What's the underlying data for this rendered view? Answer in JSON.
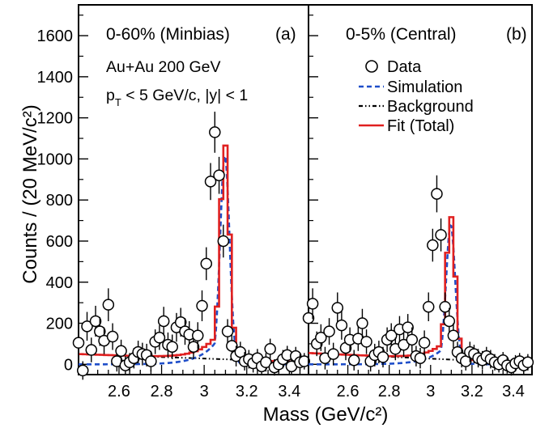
{
  "chart_data": {
    "type": "scatter",
    "ylabel": "Counts / (20 MeV/c²)",
    "xlabel": "Mass (GeV/c²)",
    "ylim": [
      -50,
      1750
    ],
    "y_ticks": [
      0,
      200,
      400,
      600,
      800,
      1000,
      1200,
      1400,
      1600
    ],
    "grid": false,
    "legend_position": "top-right of panel (b)",
    "legend": [
      {
        "label": "Data",
        "style": "open-circle",
        "color": "#000000"
      },
      {
        "label": "Simulation",
        "style": "dashed",
        "color": "#1f4ec9"
      },
      {
        "label": "Background",
        "style": "dash-dot-dot",
        "color": "#000000"
      },
      {
        "label": "Fit (Total)",
        "style": "solid",
        "color": "#e02020"
      }
    ],
    "panels": [
      {
        "id": "a",
        "label_centrality": "0-60% (Minbias)",
        "label_tag": "(a)",
        "annotation_line1": "Au+Au 200 GeV",
        "annotation_line2": "p_T < 5 GeV/c, |y| < 1",
        "xlim": [
          2.41,
          3.49
        ],
        "x_ticks": [
          "2.6",
          "2.8",
          "3",
          "3.2",
          "3.4"
        ],
        "x_tick_values": [
          2.6,
          2.8,
          3.0,
          3.2,
          3.4
        ],
        "data": [
          {
            "x": 2.41,
            "y": 105,
            "err": 60
          },
          {
            "x": 2.43,
            "y": -30,
            "err": 45
          },
          {
            "x": 2.45,
            "y": 185,
            "err": 70
          },
          {
            "x": 2.47,
            "y": 70,
            "err": 60
          },
          {
            "x": 2.49,
            "y": 210,
            "err": 75
          },
          {
            "x": 2.51,
            "y": 160,
            "err": 70
          },
          {
            "x": 2.53,
            "y": 115,
            "err": 65
          },
          {
            "x": 2.55,
            "y": 290,
            "err": 80
          },
          {
            "x": 2.57,
            "y": 135,
            "err": 65
          },
          {
            "x": 2.59,
            "y": 15,
            "err": 50
          },
          {
            "x": 2.61,
            "y": 65,
            "err": 55
          },
          {
            "x": 2.63,
            "y": -5,
            "err": 45
          },
          {
            "x": 2.65,
            "y": 10,
            "err": 45
          },
          {
            "x": 2.67,
            "y": 30,
            "err": 50
          },
          {
            "x": 2.69,
            "y": 60,
            "err": 55
          },
          {
            "x": 2.71,
            "y": 50,
            "err": 55
          },
          {
            "x": 2.73,
            "y": 45,
            "err": 55
          },
          {
            "x": 2.75,
            "y": 15,
            "err": 50
          },
          {
            "x": 2.77,
            "y": 110,
            "err": 60
          },
          {
            "x": 2.79,
            "y": 130,
            "err": 60
          },
          {
            "x": 2.81,
            "y": 210,
            "err": 70
          },
          {
            "x": 2.83,
            "y": 95,
            "err": 60
          },
          {
            "x": 2.85,
            "y": 85,
            "err": 60
          },
          {
            "x": 2.87,
            "y": 180,
            "err": 70
          },
          {
            "x": 2.89,
            "y": 205,
            "err": 70
          },
          {
            "x": 2.91,
            "y": 160,
            "err": 65
          },
          {
            "x": 2.93,
            "y": 145,
            "err": 65
          },
          {
            "x": 2.95,
            "y": 85,
            "err": 60
          },
          {
            "x": 2.97,
            "y": 140,
            "err": 65
          },
          {
            "x": 2.99,
            "y": 285,
            "err": 75
          },
          {
            "x": 3.01,
            "y": 490,
            "err": 80
          },
          {
            "x": 3.03,
            "y": 890,
            "err": 90
          },
          {
            "x": 3.05,
            "y": 1130,
            "err": 100
          },
          {
            "x": 3.07,
            "y": 920,
            "err": 90
          },
          {
            "x": 3.09,
            "y": 600,
            "err": 80
          },
          {
            "x": 3.11,
            "y": 160,
            "err": 60
          },
          {
            "x": 3.13,
            "y": 90,
            "err": 55
          },
          {
            "x": 3.15,
            "y": 40,
            "err": 50
          },
          {
            "x": 3.17,
            "y": 60,
            "err": 50
          },
          {
            "x": 3.19,
            "y": 15,
            "err": 45
          },
          {
            "x": 3.21,
            "y": 25,
            "err": 45
          },
          {
            "x": 3.23,
            "y": 5,
            "err": 45
          },
          {
            "x": 3.25,
            "y": 30,
            "err": 45
          },
          {
            "x": 3.27,
            "y": -10,
            "err": 40
          },
          {
            "x": 3.29,
            "y": 10,
            "err": 45
          },
          {
            "x": 3.31,
            "y": 75,
            "err": 50
          },
          {
            "x": 3.33,
            "y": -15,
            "err": 40
          },
          {
            "x": 3.35,
            "y": 0,
            "err": 40
          },
          {
            "x": 3.37,
            "y": 25,
            "err": 45
          },
          {
            "x": 3.39,
            "y": 45,
            "err": 45
          },
          {
            "x": 3.41,
            "y": -10,
            "err": 40
          },
          {
            "x": 3.43,
            "y": 40,
            "err": 45
          },
          {
            "x": 3.45,
            "y": 10,
            "err": 40
          },
          {
            "x": 3.47,
            "y": 15,
            "err": 40
          }
        ],
        "model": {
          "peak_mass": 3.097,
          "peak_height": 1050,
          "bg_at_low_edge": 50,
          "bg_at_high_edge": 10
        }
      },
      {
        "id": "b",
        "label_centrality": "0-5% (Central)",
        "label_tag": "(b)",
        "xlim": [
          2.41,
          3.49
        ],
        "x_ticks": [
          "2.6",
          "2.8",
          "3",
          "3.2",
          "3.4"
        ],
        "x_tick_values": [
          2.6,
          2.8,
          3.0,
          3.2,
          3.4
        ],
        "data": [
          {
            "x": 2.41,
            "y": 225,
            "err": 70
          },
          {
            "x": 2.43,
            "y": 295,
            "err": 75
          },
          {
            "x": 2.45,
            "y": 100,
            "err": 60
          },
          {
            "x": 2.47,
            "y": 130,
            "err": 65
          },
          {
            "x": 2.49,
            "y": 30,
            "err": 55
          },
          {
            "x": 2.51,
            "y": 160,
            "err": 65
          },
          {
            "x": 2.53,
            "y": 50,
            "err": 55
          },
          {
            "x": 2.55,
            "y": 275,
            "err": 75
          },
          {
            "x": 2.57,
            "y": 190,
            "err": 70
          },
          {
            "x": 2.59,
            "y": 80,
            "err": 60
          },
          {
            "x": 2.61,
            "y": 120,
            "err": 60
          },
          {
            "x": 2.63,
            "y": 20,
            "err": 50
          },
          {
            "x": 2.65,
            "y": 125,
            "err": 60
          },
          {
            "x": 2.67,
            "y": 200,
            "err": 70
          },
          {
            "x": 2.69,
            "y": 110,
            "err": 60
          },
          {
            "x": 2.71,
            "y": 15,
            "err": 50
          },
          {
            "x": 2.73,
            "y": 45,
            "err": 55
          },
          {
            "x": 2.75,
            "y": 60,
            "err": 55
          },
          {
            "x": 2.77,
            "y": 35,
            "err": 50
          },
          {
            "x": 2.79,
            "y": 120,
            "err": 60
          },
          {
            "x": 2.81,
            "y": 140,
            "err": 60
          },
          {
            "x": 2.83,
            "y": 75,
            "err": 55
          },
          {
            "x": 2.85,
            "y": 170,
            "err": 65
          },
          {
            "x": 2.87,
            "y": 95,
            "err": 60
          },
          {
            "x": 2.89,
            "y": 180,
            "err": 65
          },
          {
            "x": 2.91,
            "y": 120,
            "err": 60
          },
          {
            "x": 2.93,
            "y": 40,
            "err": 50
          },
          {
            "x": 2.95,
            "y": 30,
            "err": 50
          },
          {
            "x": 2.97,
            "y": 105,
            "err": 60
          },
          {
            "x": 2.99,
            "y": 280,
            "err": 70
          },
          {
            "x": 3.01,
            "y": 580,
            "err": 80
          },
          {
            "x": 3.03,
            "y": 830,
            "err": 90
          },
          {
            "x": 3.05,
            "y": 630,
            "err": 80
          },
          {
            "x": 3.07,
            "y": 280,
            "err": 70
          },
          {
            "x": 3.09,
            "y": 210,
            "err": 65
          },
          {
            "x": 3.11,
            "y": 140,
            "err": 60
          },
          {
            "x": 3.13,
            "y": 60,
            "err": 50
          },
          {
            "x": 3.15,
            "y": 30,
            "err": 45
          },
          {
            "x": 3.17,
            "y": 15,
            "err": 45
          },
          {
            "x": 3.19,
            "y": 60,
            "err": 50
          },
          {
            "x": 3.21,
            "y": 50,
            "err": 45
          },
          {
            "x": 3.23,
            "y": 30,
            "err": 45
          },
          {
            "x": 3.25,
            "y": 20,
            "err": 45
          },
          {
            "x": 3.27,
            "y": 40,
            "err": 45
          },
          {
            "x": 3.29,
            "y": 25,
            "err": 45
          },
          {
            "x": 3.31,
            "y": 10,
            "err": 40
          },
          {
            "x": 3.33,
            "y": 0,
            "err": 40
          },
          {
            "x": 3.35,
            "y": 20,
            "err": 40
          },
          {
            "x": 3.37,
            "y": -5,
            "err": 40
          },
          {
            "x": 3.39,
            "y": -15,
            "err": 40
          },
          {
            "x": 3.41,
            "y": 5,
            "err": 40
          },
          {
            "x": 3.43,
            "y": 15,
            "err": 40
          },
          {
            "x": 3.45,
            "y": -5,
            "err": 40
          },
          {
            "x": 3.47,
            "y": 10,
            "err": 40
          }
        ],
        "model": {
          "peak_mass": 3.097,
          "peak_height": 700,
          "bg_at_low_edge": 55,
          "bg_at_high_edge": 5
        }
      }
    ]
  }
}
